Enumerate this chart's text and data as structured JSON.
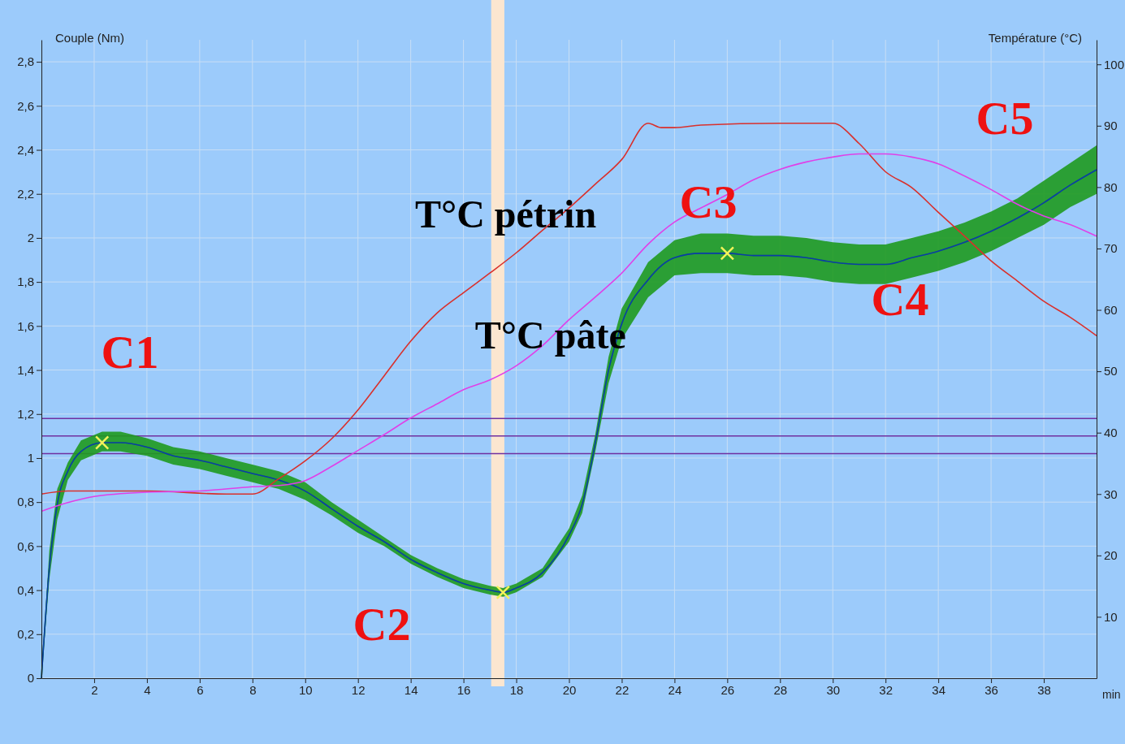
{
  "chart_data": {
    "type": "line",
    "ylabel": "Couple (Nm)",
    "y2label": "Température (°C)",
    "xlabel": "min",
    "x": [
      0,
      0.3,
      0.6,
      1,
      1.5,
      2.3,
      3,
      4,
      5,
      6,
      7,
      8,
      9,
      10,
      11,
      12,
      13,
      14,
      15,
      16,
      17,
      17.5,
      18,
      19,
      20,
      20.5,
      21,
      21.5,
      22,
      23,
      24,
      25,
      26,
      27,
      28,
      29,
      30,
      31,
      32,
      33,
      34,
      35,
      36,
      37,
      38,
      39,
      40
    ],
    "xlim": [
      0,
      40
    ],
    "xticks": [
      2,
      4,
      6,
      8,
      10,
      12,
      14,
      16,
      18,
      20,
      22,
      24,
      26,
      28,
      30,
      32,
      34,
      36,
      38
    ],
    "ylim": [
      0,
      2.9
    ],
    "yticks": [
      {
        "value": 0,
        "label": "0"
      },
      {
        "value": 0.2,
        "label": "0,2"
      },
      {
        "value": 0.4,
        "label": "0,4"
      },
      {
        "value": 0.6,
        "label": "0,6"
      },
      {
        "value": 0.8,
        "label": "0,8"
      },
      {
        "value": 1,
        "label": "1"
      },
      {
        "value": 1.2,
        "label": "1,2"
      },
      {
        "value": 1.4,
        "label": "1,4"
      },
      {
        "value": 1.6,
        "label": "1,6"
      },
      {
        "value": 1.8,
        "label": "1,8"
      },
      {
        "value": 2,
        "label": "2"
      },
      {
        "value": 2.2,
        "label": "2,2"
      },
      {
        "value": 2.4,
        "label": "2,4"
      },
      {
        "value": 2.6,
        "label": "2,6"
      },
      {
        "value": 2.8,
        "label": "2,8"
      }
    ],
    "y2lim": [
      0,
      104
    ],
    "y2ticks": [
      10,
      20,
      30,
      40,
      50,
      60,
      70,
      80,
      90,
      100
    ],
    "grid": true,
    "series": [
      {
        "color": "#1f9a1f",
        "values": [
          0,
          0.5,
          0.79,
          0.94,
          1.03,
          1.07,
          1.07,
          1.05,
          1.01,
          0.99,
          0.96,
          0.93,
          0.9,
          0.85,
          0.77,
          0.69,
          0.62,
          0.54,
          0.48,
          0.43,
          0.4,
          0.39,
          0.41,
          0.48,
          0.65,
          0.79,
          1.07,
          1.4,
          1.61,
          1.81,
          1.91,
          1.93,
          1.93,
          1.92,
          1.92,
          1.91,
          1.89,
          1.88,
          1.88,
          1.91,
          1.94,
          1.98,
          2.03,
          2.09,
          2.16,
          2.24,
          2.31
        ],
        "lower": [
          0,
          0.45,
          0.72,
          0.9,
          0.99,
          1.03,
          1.03,
          1.01,
          0.97,
          0.95,
          0.92,
          0.89,
          0.86,
          0.81,
          0.74,
          0.66,
          0.6,
          0.52,
          0.46,
          0.41,
          0.38,
          0.37,
          0.39,
          0.46,
          0.62,
          0.75,
          1.03,
          1.34,
          1.54,
          1.73,
          1.83,
          1.84,
          1.84,
          1.83,
          1.83,
          1.82,
          1.8,
          1.79,
          1.79,
          1.82,
          1.85,
          1.89,
          1.94,
          2,
          2.06,
          2.14,
          2.2
        ],
        "upper": [
          0,
          0.58,
          0.86,
          0.98,
          1.08,
          1.12,
          1.12,
          1.09,
          1.05,
          1.03,
          1,
          0.97,
          0.94,
          0.89,
          0.8,
          0.72,
          0.64,
          0.56,
          0.5,
          0.45,
          0.42,
          0.41,
          0.43,
          0.5,
          0.68,
          0.83,
          1.11,
          1.46,
          1.68,
          1.89,
          1.99,
          2.02,
          2.02,
          2.01,
          2.01,
          2,
          1.98,
          1.97,
          1.97,
          2,
          2.03,
          2.07,
          2.12,
          2.18,
          2.26,
          2.34,
          2.42
        ]
      },
      {
        "color": "#0a3da8",
        "values": [
          0,
          0.5,
          0.79,
          0.94,
          1.03,
          1.07,
          1.07,
          1.05,
          1.01,
          0.99,
          0.96,
          0.93,
          0.9,
          0.85,
          0.77,
          0.69,
          0.62,
          0.54,
          0.48,
          0.43,
          0.4,
          0.39,
          0.41,
          0.48,
          0.65,
          0.79,
          1.07,
          1.4,
          1.61,
          1.81,
          1.91,
          1.93,
          1.93,
          1.92,
          1.92,
          1.91,
          1.89,
          1.88,
          1.88,
          1.91,
          1.94,
          1.98,
          2.03,
          2.09,
          2.16,
          2.24,
          2.31
        ]
      },
      {
        "color": "#d9302c",
        "axis": "y2",
        "x": [
          0,
          1,
          4,
          7,
          8,
          9,
          10,
          11,
          12,
          13,
          14,
          15,
          16,
          17,
          18,
          19,
          20,
          21,
          22,
          23,
          23.5,
          24,
          25,
          28,
          30,
          31,
          32,
          33,
          34,
          35,
          36,
          37,
          38,
          39,
          40
        ],
        "values": [
          30,
          30.5,
          30.5,
          30,
          30,
          32.5,
          35.4,
          39,
          43.7,
          49.3,
          54.9,
          59.5,
          62.8,
          66,
          69.3,
          73,
          76.6,
          80.5,
          84.5,
          90.4,
          89.7,
          89.7,
          90.1,
          90.4,
          90.4,
          87.1,
          82.5,
          79.9,
          75.9,
          72,
          68,
          64.7,
          61.4,
          58.8,
          55.8
        ]
      },
      {
        "color": "#e040e8",
        "axis": "y2",
        "x": [
          0,
          1,
          2,
          4,
          6,
          8,
          9,
          10,
          11,
          12,
          13,
          14,
          15,
          16,
          17,
          18,
          19,
          20,
          21,
          22,
          23,
          24,
          25,
          26,
          27,
          28,
          29,
          30,
          31,
          32,
          33,
          34,
          35,
          36,
          37,
          38,
          39,
          40
        ],
        "values": [
          27.2,
          28.6,
          29.6,
          30.3,
          30.5,
          31.2,
          31.4,
          32.2,
          34.5,
          37.1,
          39.7,
          42.4,
          44.7,
          47,
          48.6,
          50.9,
          54.2,
          58.4,
          62.1,
          66,
          70.7,
          74.3,
          76.6,
          78.8,
          81.2,
          82.9,
          84.1,
          84.9,
          85.4,
          85.4,
          84.9,
          83.8,
          81.8,
          79.6,
          77.2,
          75.3,
          73.9,
          72
        ]
      },
      {
        "type": "scatter",
        "marker": "cross",
        "color": "#f2f25a",
        "x": [
          2.3,
          17.5,
          26
        ],
        "values": [
          1.07,
          0.39,
          1.93
        ]
      }
    ],
    "ref_lines": [
      {
        "axis": "y",
        "value": 1.18,
        "color": "#7030a0"
      },
      {
        "axis": "y",
        "value": 1.1,
        "color": "#7030a0"
      },
      {
        "axis": "y",
        "value": 1.02,
        "color": "#7030a0"
      }
    ],
    "bands": [
      {
        "axis": "x",
        "from": 17.05,
        "to": 17.55,
        "color": "#fbe6d0"
      }
    ],
    "annotations": [
      {
        "text": "T°C pétrin",
        "x": 17.6,
        "y": 2.09
      },
      {
        "text": "T°C pâte",
        "x": 19.3,
        "y": 1.54
      },
      "C1",
      "C2",
      "C3",
      "C4",
      "C5"
    ]
  }
}
